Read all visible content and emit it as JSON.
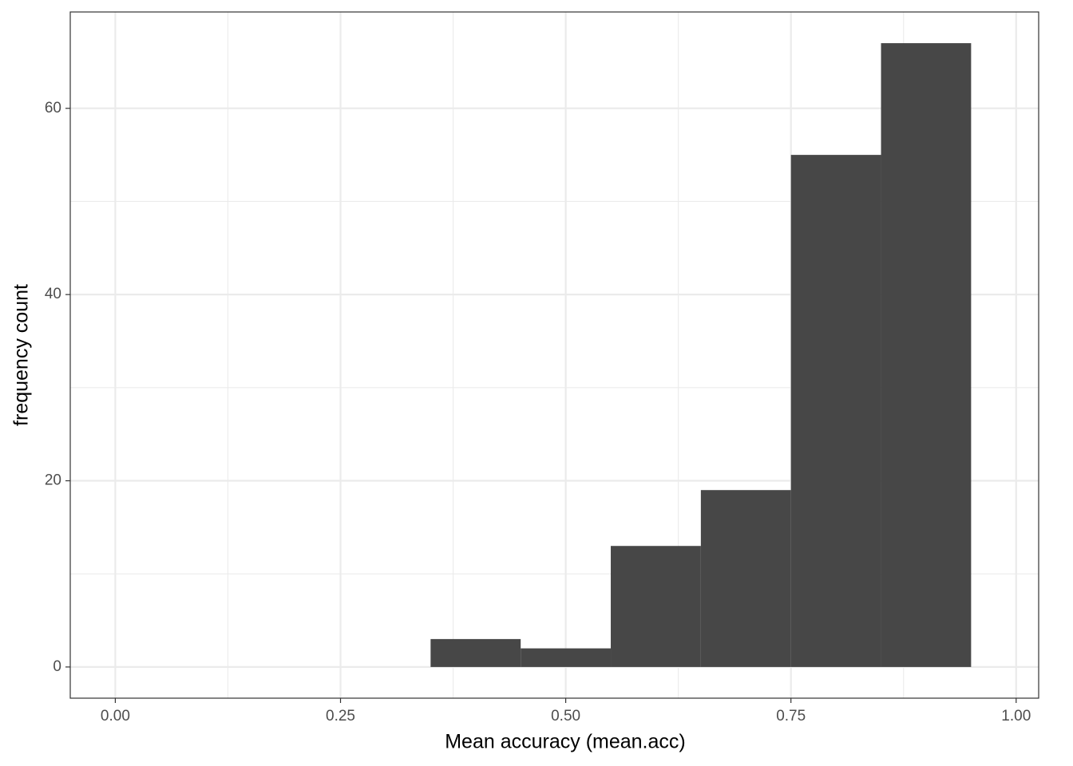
{
  "chart_data": {
    "type": "histogram",
    "x_label": "Mean accuracy (mean.acc)",
    "y_label": "frequency count",
    "bins": [
      0.35,
      0.45,
      0.55,
      0.65,
      0.75,
      0.85,
      0.95
    ],
    "counts": [
      3,
      2,
      13,
      19,
      55,
      67
    ],
    "color": "#474747",
    "xlim": [
      -0.05,
      1.025
    ],
    "ylim": [
      -3.35,
      70.35
    ],
    "xticks": [
      {
        "value": 0,
        "label": "0.00"
      },
      {
        "value": 0.25,
        "label": "0.25"
      },
      {
        "value": 0.5,
        "label": "0.50"
      },
      {
        "value": 0.75,
        "label": "0.75"
      },
      {
        "value": 1,
        "label": "1.00"
      }
    ],
    "yticks": [
      0,
      20,
      40,
      60
    ],
    "x_minor_ticks": [
      0.125,
      0.375,
      0.625,
      0.875
    ],
    "y_minor_ticks": [
      10,
      30,
      50
    ],
    "grid": true
  }
}
